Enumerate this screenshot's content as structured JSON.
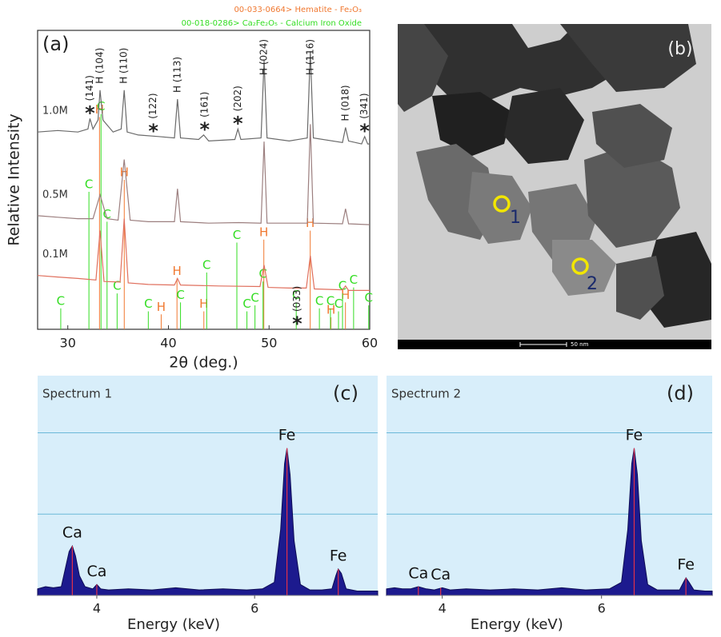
{
  "chart_data": [
    {
      "type": "line",
      "panel": "(a)",
      "x_label": "2θ (deg.)",
      "y_label": "Relative Intensity",
      "xlim": [
        27,
        60
      ],
      "xticks": [
        30,
        40,
        50,
        60
      ],
      "ylim": [
        0,
        100
      ],
      "series": [
        {
          "name": "1.0M",
          "color": "#6a6a6a",
          "x": [
            27,
            29,
            31,
            32,
            32.2,
            32.5,
            33.0,
            33.2,
            33.5,
            34.5,
            35.3,
            35.6,
            35.9,
            37,
            39,
            40.6,
            40.9,
            41.2,
            43,
            43.5,
            44,
            46.6,
            46.9,
            47.2,
            49.2,
            49.5,
            49.8,
            52,
            53.8,
            54.1,
            54.4,
            57.3,
            57.6,
            57.9,
            59.2,
            59.5,
            59.8,
            60
          ],
          "values": [
            66,
            66.5,
            66,
            67,
            70.5,
            67,
            70,
            80,
            70,
            66,
            67,
            80,
            66,
            65,
            64.5,
            64,
            77,
            64,
            63.5,
            65,
            63,
            63.5,
            67,
            63.5,
            64,
            90,
            64,
            63,
            64,
            93,
            64,
            62.5,
            67.5,
            63,
            62,
            64.5,
            62,
            62
          ]
        },
        {
          "name": "0.5M",
          "color": "#9c7f7f",
          "x": [
            27,
            29,
            31,
            32.5,
            33.2,
            33.9,
            35,
            35.6,
            36.2,
            38,
            40.6,
            40.9,
            41.2,
            44,
            47,
            49.2,
            49.5,
            49.8,
            52,
            53.8,
            54.1,
            54.4,
            57.3,
            57.6,
            57.9,
            60
          ],
          "values": [
            38,
            37.5,
            37,
            37,
            45,
            37,
            36.5,
            56.8,
            36.5,
            36,
            36,
            47,
            36,
            35.5,
            35.7,
            35.5,
            62.8,
            35.5,
            35.5,
            35.5,
            68.6,
            35.5,
            35.3,
            40.3,
            35.3,
            35
          ]
        },
        {
          "name": "0.1M",
          "color": "#e0705e",
          "x": [
            27,
            29,
            31,
            32.8,
            33.2,
            33.6,
            35.2,
            35.6,
            36,
            38,
            40.6,
            40.9,
            41.2,
            45,
            49.1,
            49.5,
            49.9,
            52,
            53.7,
            54.1,
            54.5,
            57.3,
            57.6,
            57.9,
            60
          ],
          "values": [
            18,
            17.5,
            17,
            16.5,
            33,
            16,
            15.8,
            37,
            15.5,
            15,
            14.8,
            17,
            14.8,
            14.5,
            14.3,
            21.5,
            14,
            13.8,
            13.8,
            24.6,
            13.5,
            13.2,
            14.5,
            13,
            13
          ]
        }
      ],
      "reference_patterns": [
        {
          "name": "00-033-0664> Hematite - Fe₂O₃",
          "marker": "H",
          "color": "#f07830",
          "x": [
            33.15,
            35.61,
            39.28,
            40.85,
            43.52,
            49.48,
            54.09,
            56.15,
            57.59
          ],
          "values": [
            71,
            50,
            5,
            17,
            6,
            30,
            33,
            4,
            9
          ]
        },
        {
          "name": "00-018-0286> Ca₂Fe₂O₅ - Calcium Iron Oxide",
          "marker": "C",
          "color": "#33dd22",
          "x": [
            29.3,
            32.1,
            33.3,
            33.9,
            34.9,
            38.0,
            41.2,
            43.8,
            46.8,
            47.8,
            48.6,
            49.4,
            52.7,
            55.0,
            56.1,
            56.9,
            57.3,
            58.4,
            59.9
          ],
          "values": [
            7,
            46,
            72,
            36,
            12,
            6,
            9,
            19,
            29,
            6,
            8,
            16,
            9,
            7,
            7,
            6,
            12,
            14,
            8
          ]
        }
      ],
      "annotations": [
        {
          "text": "(141)",
          "x": 32.2,
          "symbol": "*"
        },
        {
          "text": "H (104)",
          "x": 33.2
        },
        {
          "text": "H (110)",
          "x": 35.6
        },
        {
          "text": "(122)",
          "x": 38.5,
          "symbol": "*"
        },
        {
          "text": "H (113)",
          "x": 40.9
        },
        {
          "text": "(161)",
          "x": 43.6,
          "symbol": "*"
        },
        {
          "text": "(202)",
          "x": 46.9,
          "symbol": "*"
        },
        {
          "text": "H (024)",
          "x": 49.5
        },
        {
          "text": "(033)",
          "x": 52.8,
          "symbol": "*"
        },
        {
          "text": "H (116)",
          "x": 54.1
        },
        {
          "text": "H (018)",
          "x": 57.6
        },
        {
          "text": "(341)",
          "x": 59.5,
          "symbol": "*"
        }
      ]
    },
    {
      "type": "area",
      "panel": "(c)",
      "title": "Spectrum 1",
      "x_label": "Energy (keV)",
      "xlim": [
        3.25,
        7.56
      ],
      "xticks": [
        4,
        6
      ],
      "ylim": [
        0,
        100
      ],
      "gridlines": [
        37,
        74
      ],
      "series": [
        {
          "color": "#1c1a8e",
          "x": [
            3.25,
            3.35,
            3.45,
            3.55,
            3.6,
            3.65,
            3.69,
            3.73,
            3.78,
            3.85,
            3.95,
            4.0,
            4.05,
            4.15,
            4.4,
            4.7,
            5.0,
            5.3,
            5.6,
            5.9,
            6.1,
            6.25,
            6.33,
            6.38,
            6.41,
            6.45,
            6.5,
            6.58,
            6.7,
            6.85,
            6.98,
            7.03,
            7.06,
            7.1,
            7.16,
            7.3,
            7.56
          ],
          "values": [
            3,
            4,
            3.5,
            4,
            12,
            20,
            22.5,
            18,
            9,
            4,
            3,
            5,
            3,
            2.5,
            3,
            2.5,
            3.5,
            2.5,
            3,
            2.5,
            3,
            6,
            30,
            60,
            67,
            55,
            25,
            5,
            2.5,
            2.5,
            3,
            9,
            12,
            10,
            3,
            2,
            2
          ]
        }
      ],
      "annotations": [
        {
          "text": "Ca",
          "x": 3.69
        },
        {
          "text": "Ca",
          "x": 4.0
        },
        {
          "text": "Fe",
          "x": 6.41
        },
        {
          "text": "Fe",
          "x": 7.06
        }
      ]
    },
    {
      "type": "area",
      "panel": "(d)",
      "title": "Spectrum 2",
      "x_label": "Energy (keV)",
      "xlim": [
        3.3,
        7.39
      ],
      "xticks": [
        4,
        6
      ],
      "ylim": [
        0,
        100
      ],
      "gridlines": [
        37,
        74
      ],
      "series": [
        {
          "color": "#1c1a8e",
          "x": [
            3.3,
            3.4,
            3.5,
            3.6,
            3.7,
            3.8,
            3.9,
            4.0,
            4.1,
            4.3,
            4.6,
            4.9,
            5.2,
            5.5,
            5.8,
            6.1,
            6.25,
            6.33,
            6.38,
            6.41,
            6.45,
            6.5,
            6.58,
            6.7,
            6.85,
            6.98,
            7.03,
            7.06,
            7.1,
            7.16,
            7.3,
            7.39
          ],
          "values": [
            3,
            3.5,
            3,
            3,
            4,
            3,
            2.5,
            3.5,
            2.5,
            3,
            2.5,
            3,
            2.5,
            3.5,
            2.5,
            3,
            6,
            30,
            60,
            67,
            55,
            25,
            5,
            2.5,
            2.5,
            2.5,
            6,
            8,
            6,
            2.5,
            2,
            2
          ]
        }
      ],
      "annotations": [
        {
          "text": "Ca",
          "x": 3.7
        },
        {
          "text": "Ca",
          "x": 3.98
        },
        {
          "text": "Fe",
          "x": 6.41
        },
        {
          "text": "Fe",
          "x": 7.06
        }
      ]
    }
  ],
  "image_panel": {
    "label": "(b)",
    "points": [
      "1",
      "2"
    ],
    "scale_bar": "50 nm"
  }
}
